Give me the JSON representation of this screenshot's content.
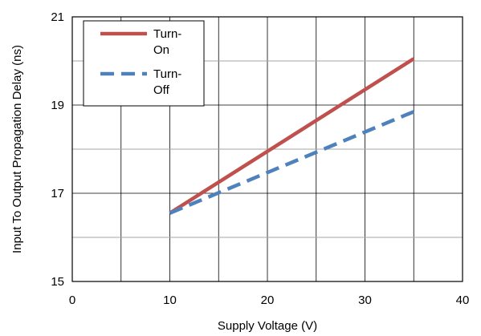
{
  "chart_data": {
    "type": "line",
    "title": "",
    "xlabel": "Supply Voltage (V)",
    "ylabel": "Input To Output Propagation Delay (ns)",
    "xlim": [
      0,
      40
    ],
    "ylim": [
      15,
      21
    ],
    "x_ticks": [
      0,
      10,
      20,
      30,
      40
    ],
    "y_ticks": [
      15,
      17,
      19,
      21
    ],
    "x_tick_labels": [
      "0",
      "10",
      "20",
      "30",
      "40"
    ],
    "y_tick_labels": [
      "15",
      "17",
      "19",
      "21"
    ],
    "grid": "on",
    "legend_position": "top-left",
    "series": [
      {
        "name_lines": [
          "Turn-",
          "On"
        ],
        "style": "solid",
        "color": "#c0504d",
        "x": [
          10,
          35
        ],
        "y": [
          16.55,
          20.05
        ]
      },
      {
        "name_lines": [
          "Turn-",
          "Off"
        ],
        "style": "dashed",
        "color": "#4f81bd",
        "x": [
          10,
          35
        ],
        "y": [
          16.55,
          18.85
        ]
      }
    ]
  }
}
